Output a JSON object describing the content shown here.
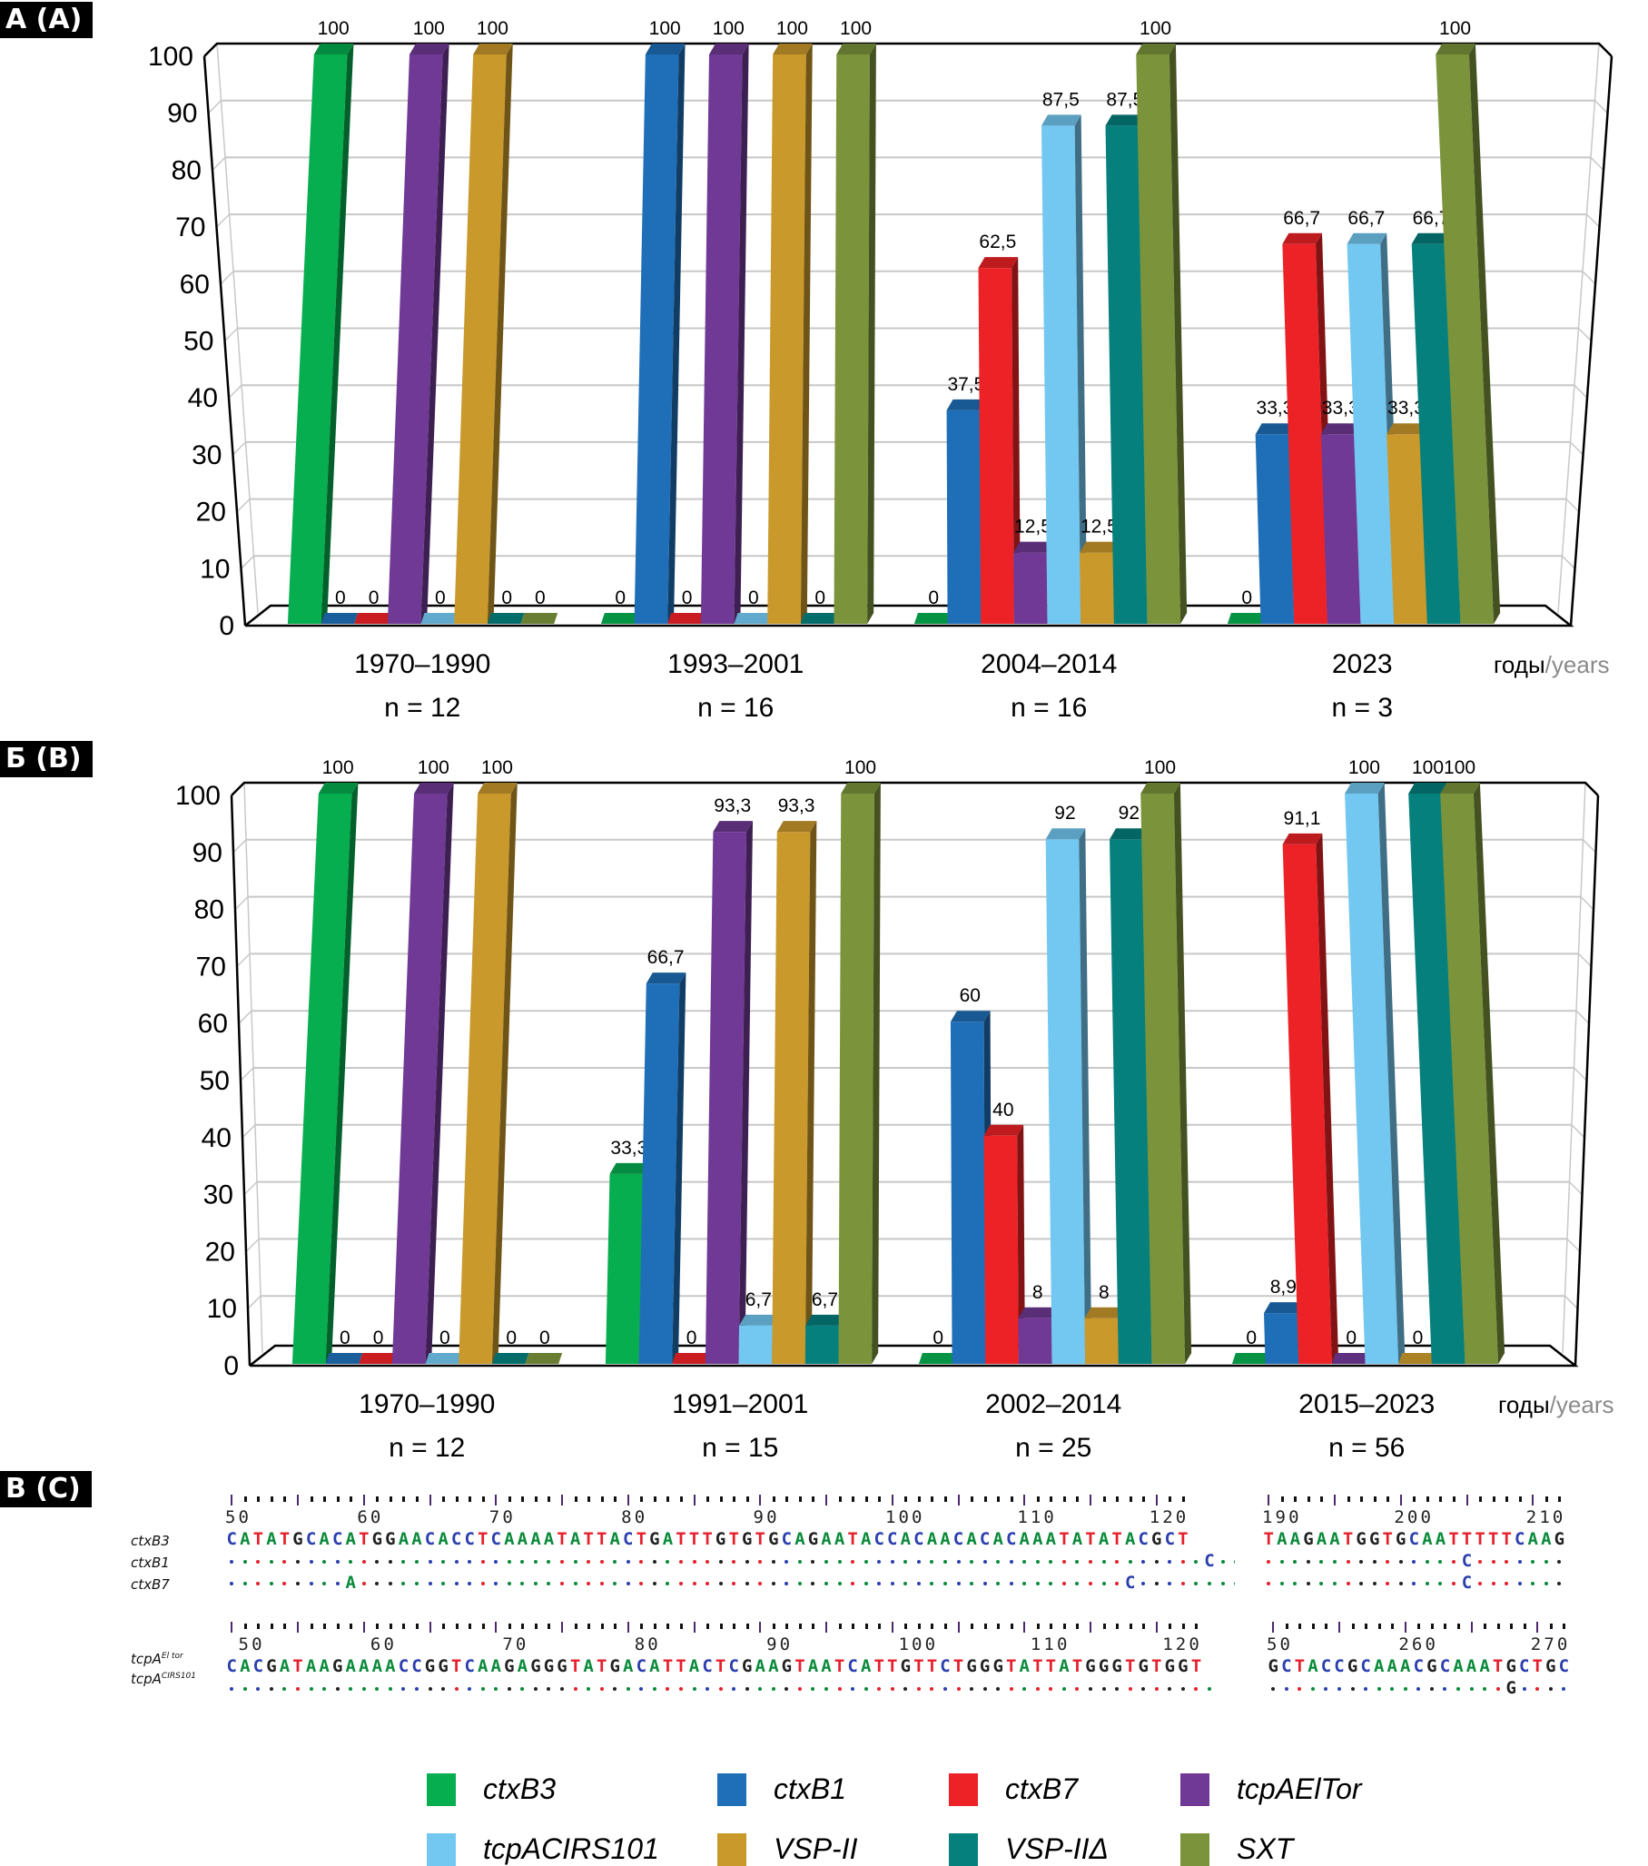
{
  "panels": {
    "a_label": "А (A)",
    "b_label": "Б (B)",
    "c_label": "В (C)"
  },
  "legend": [
    {
      "name": "ctxB3",
      "color": "#06AE4F"
    },
    {
      "name": "ctxB1",
      "color": "#1F6FB8"
    },
    {
      "name": "ctxB7",
      "color": "#ED2227"
    },
    {
      "name": "tcpAElTor",
      "color": "#6F3995"
    },
    {
      "name": "tcpACIRS101",
      "color": "#73C8F1"
    },
    {
      "name": "VSP-II",
      "color": "#C9992C"
    },
    {
      "name": "VSP-IIΔ",
      "color": "#05807D"
    },
    {
      "name": "SXT",
      "color": "#7B943C"
    }
  ],
  "chart_data": [
    {
      "type": "bar",
      "panel": "А (A)",
      "ylim": [
        0,
        100
      ],
      "yticks": [
        "0",
        "10",
        "20",
        "30",
        "40",
        "50",
        "60",
        "70",
        "80",
        "90",
        "100"
      ],
      "xlabel_ru": "годы",
      "xlabel_en": "/years",
      "grid": true,
      "categories": [
        "1970–1990",
        "1993–2001",
        "2004–2014",
        "2023"
      ],
      "n_labels": [
        "n = 12",
        "n = 16",
        "n = 16",
        "n = 3"
      ],
      "series": [
        {
          "name": "ctxB3",
          "values": [
            100,
            0,
            0,
            0
          ],
          "labels": [
            "100",
            "0",
            "0",
            "0"
          ]
        },
        {
          "name": "ctxB1",
          "values": [
            0,
            100,
            37.5,
            33.3
          ],
          "labels": [
            "0",
            "100",
            "37,5",
            "33,3"
          ]
        },
        {
          "name": "ctxB7",
          "values": [
            0,
            0,
            62.5,
            66.7
          ],
          "labels": [
            "0",
            "0",
            "62,5",
            "66,7"
          ]
        },
        {
          "name": "tcpAElTor",
          "values": [
            100,
            100,
            12.5,
            33.3
          ],
          "labels": [
            "100",
            "100",
            "12,5",
            "33,3"
          ]
        },
        {
          "name": "tcpACIRS101",
          "values": [
            0,
            0,
            87.5,
            66.7
          ],
          "labels": [
            "0",
            "0",
            "87,5",
            "66,7"
          ]
        },
        {
          "name": "VSP-II",
          "values": [
            100,
            100,
            12.5,
            33.3
          ],
          "labels": [
            "100",
            "100",
            "12,5",
            "33,3"
          ]
        },
        {
          "name": "VSP-IIΔ",
          "values": [
            0,
            0,
            87.5,
            66.7
          ],
          "labels": [
            "0",
            "0",
            "87,5",
            "66,7"
          ]
        },
        {
          "name": "SXT",
          "values": [
            0,
            100,
            100,
            100
          ],
          "labels": [
            "0",
            "100",
            "100",
            "100"
          ]
        }
      ]
    },
    {
      "type": "bar",
      "panel": "Б (B)",
      "ylim": [
        0,
        100
      ],
      "yticks": [
        "0",
        "10",
        "20",
        "30",
        "40",
        "50",
        "60",
        "70",
        "80",
        "90",
        "100"
      ],
      "xlabel_ru": "годы",
      "xlabel_en": "/years",
      "grid": true,
      "categories": [
        "1970–1990",
        "1991–2001",
        "2002–2014",
        "2015–2023"
      ],
      "n_labels": [
        "n = 12",
        "n = 15",
        "n = 25",
        "n = 56"
      ],
      "series": [
        {
          "name": "ctxB3",
          "values": [
            100,
            33.3,
            0,
            0
          ],
          "labels": [
            "100",
            "33,3",
            "0",
            "0"
          ]
        },
        {
          "name": "ctxB1",
          "values": [
            0,
            66.7,
            60,
            8.9
          ],
          "labels": [
            "0",
            "66,7",
            "60",
            "8,9"
          ]
        },
        {
          "name": "ctxB7",
          "values": [
            0,
            0,
            40,
            91.1
          ],
          "labels": [
            "0",
            "0",
            "40",
            "91,1"
          ]
        },
        {
          "name": "tcpAElTor",
          "values": [
            100,
            93.3,
            8,
            0
          ],
          "labels": [
            "100",
            "93,3",
            "8",
            "0"
          ]
        },
        {
          "name": "tcpACIRS101",
          "values": [
            0,
            6.7,
            92,
            100
          ],
          "labels": [
            "0",
            "6,7",
            "92",
            "100"
          ]
        },
        {
          "name": "VSP-II",
          "values": [
            100,
            93.3,
            8,
            0
          ],
          "labels": [
            "100",
            "93,3",
            "8",
            "0"
          ]
        },
        {
          "name": "VSP-IIΔ",
          "values": [
            0,
            6.7,
            92,
            100
          ],
          "labels": [
            "0",
            "6,7",
            "92",
            "100"
          ]
        },
        {
          "name": "SXT",
          "values": [
            0,
            100,
            100,
            100
          ],
          "labels": [
            "0",
            "100",
            "100",
            "100"
          ]
        }
      ]
    }
  ],
  "alignment": {
    "ctx": {
      "labels": [
        "ctxB3",
        "ctxB1",
        "ctxB7"
      ],
      "block1": {
        "ruler_numbers": "50        60        70        80        90        100       110       120",
        "rows": [
          "CATATGCACATGGAACACCTCAAAATATTACTGATTTGTGTGCAGAATACCACAACACACAAATATATACGCT",
          "..........................................................................C........",
          ".........A..........................................................C........"
        ]
      },
      "block2": {
        "ruler_numbers": "190       200       210",
        "rows": [
          "TAAGAATGGTGCAATTTTTCAAG",
          "...............C.......",
          "...............C......."
        ]
      }
    },
    "tcp": {
      "label_base": "tcpA",
      "labels_sup": [
        "El tor",
        "CIRS101"
      ],
      "block1": {
        "ruler_numbers": " 50        60        70        80        90        100       110       120",
        "rows": [
          "CACGATAAGAAAACCGGTCAAGAGGGTATGACATTACTCGAAGTAATCATTGTTCTGGGTATTATGGGTGTGGT",
          "..........................................................................."
        ]
      },
      "block2": {
        "ruler_numbers": "50        260       270",
        "rows": [
          "GCTACCGCAAACGCAAATGCTGC",
          "..................G...."
        ]
      }
    }
  }
}
